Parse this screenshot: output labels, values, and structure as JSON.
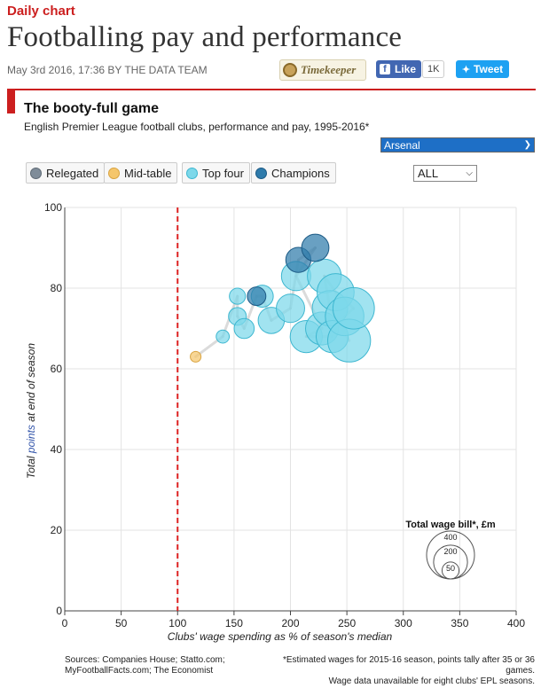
{
  "header": {
    "kicker": "Daily chart",
    "headline": "Footballing pay and performance",
    "byline": "May 3rd 2016, 17:36 BY THE DATA TEAM",
    "timekeeper_label": "Timekeeper",
    "like_label": "Like",
    "like_count": "1K",
    "tweet_label": "Tweet"
  },
  "chart": {
    "title": "The booty-full game",
    "subtitle": "English Premier League football clubs, performance and pay, 1995-2016*",
    "team_selected": "Arsenal",
    "filter_selected": "ALL",
    "legend": [
      {
        "label": "Relegated",
        "color": "#7f8c99",
        "border": "#5f6a75"
      },
      {
        "label": "Mid-table",
        "color": "#f5c66c",
        "border": "#d9a441"
      },
      {
        "label": "Top four",
        "color": "#7dd8ea",
        "border": "#3eb7d0"
      },
      {
        "label": "Champions",
        "color": "#2f7bab",
        "border": "#1c5a85"
      }
    ],
    "size_legend_title": "Total wage bill*, £m",
    "size_legend_values": [
      "400",
      "200",
      "50"
    ],
    "source_lines": [
      "Sources: Companies House; Statto.com;",
      "MyFootballFacts.com; The Economist"
    ],
    "note_lines": [
      "*Estimated wages for 2015-16 season, points tally after 35 or 36 games.",
      "Wage data unavailable for eight clubs' EPL seasons."
    ]
  },
  "chart_data": {
    "type": "scatter",
    "xlabel": "Clubs' wage spending as % of season's median",
    "ylabel_parts": [
      "Total ",
      "points",
      " at end of season"
    ],
    "xlim": [
      0,
      400
    ],
    "ylim": [
      0,
      100
    ],
    "xticks": [
      0,
      50,
      100,
      150,
      200,
      250,
      300,
      350,
      400
    ],
    "yticks": [
      0,
      20,
      40,
      60,
      80,
      100
    ],
    "reference_x": 100,
    "series": [
      {
        "name": "Mid-table",
        "color": "#f5c66c",
        "points": [
          [
            116,
            63,
            20
          ]
        ]
      },
      {
        "name": "Top four",
        "color": "#7dd8ea",
        "points": [
          [
            140,
            68,
            30
          ],
          [
            153,
            78,
            45
          ],
          [
            153,
            73,
            55
          ],
          [
            159,
            70,
            70
          ],
          [
            175,
            78,
            85
          ],
          [
            183,
            72,
            120
          ],
          [
            200,
            75,
            140
          ],
          [
            205,
            83,
            150
          ],
          [
            214,
            68,
            180
          ],
          [
            228,
            70,
            190
          ],
          [
            230,
            83,
            200
          ],
          [
            235,
            75,
            220
          ],
          [
            237,
            68,
            180
          ],
          [
            240,
            79,
            240
          ],
          [
            248,
            73,
            260
          ],
          [
            252,
            67,
            320
          ],
          [
            256,
            75,
            300
          ]
        ]
      },
      {
        "name": "Champions",
        "color": "#2f7bab",
        "points": [
          [
            170,
            78,
            60
          ],
          [
            207,
            87,
            110
          ],
          [
            222,
            90,
            130
          ]
        ]
      }
    ],
    "trajectory": [
      [
        116,
        63
      ],
      [
        140,
        68
      ],
      [
        153,
        78
      ],
      [
        153,
        73
      ],
      [
        159,
        70
      ],
      [
        170,
        78
      ],
      [
        175,
        78
      ],
      [
        183,
        72
      ],
      [
        200,
        75
      ],
      [
        207,
        87
      ],
      [
        222,
        90
      ],
      [
        205,
        83
      ],
      [
        228,
        70
      ],
      [
        214,
        68
      ],
      [
        237,
        68
      ],
      [
        248,
        73
      ],
      [
        256,
        75
      ],
      [
        240,
        79
      ],
      [
        230,
        83
      ],
      [
        235,
        75
      ],
      [
        252,
        67
      ]
    ],
    "size_legend_reference": [
      400,
      200,
      50
    ]
  }
}
